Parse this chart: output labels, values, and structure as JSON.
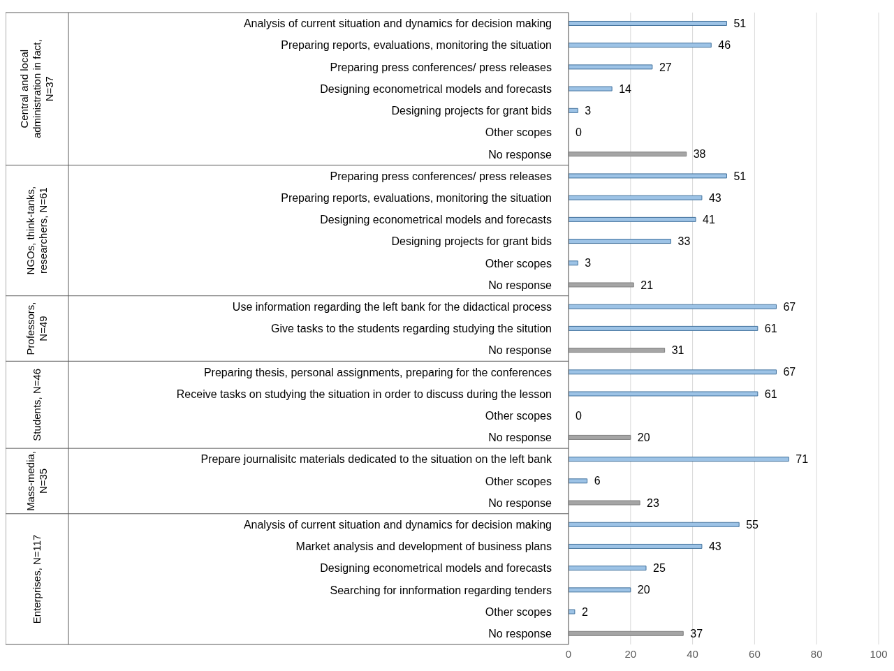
{
  "chart_data": {
    "type": "bar",
    "orientation": "horizontal",
    "categories": [
      "Analysis of current situation and dynamics for decision making",
      "Preparing reports, evaluations, monitoring the situation",
      "Preparing press conferences/ press releases",
      "Designing econometrical models and forecasts",
      "Designing projects for grant bids",
      "Other scopes",
      "No response",
      "Preparing press conferences/ press releases",
      "Preparing reports, evaluations, monitoring the situation",
      "Designing econometrical models and forecasts",
      "Designing projects for grant bids",
      "Other scopes",
      "No response",
      "Use information regarding the left bank for the didactical process",
      "Give tasks to the students regarding studying the sitution",
      "No response",
      "Preparing thesis, personal assignments, preparing for the conferences",
      "Receive tasks on studying the situation in order to discuss during the lesson",
      "Other scopes",
      "No response",
      "Prepare journalisitc materials dedicated to the situation on the left bank",
      "Other scopes",
      "No response",
      "Analysis of current situation and dynamics for decision making",
      "Market analysis and development of business plans",
      "Designing econometrical models and forecasts",
      "Searching for innformation regarding tenders",
      "Other scopes",
      "No response"
    ],
    "values": [
      51,
      46,
      27,
      14,
      3,
      0,
      38,
      51,
      43,
      41,
      33,
      3,
      21,
      67,
      61,
      31,
      67,
      61,
      0,
      20,
      71,
      6,
      23,
      55,
      43,
      25,
      20,
      2,
      37
    ],
    "colors": [
      "#9dc3e6",
      "#9dc3e6",
      "#9dc3e6",
      "#9dc3e6",
      "#9dc3e6",
      "#9dc3e6",
      "#a5a5a5",
      "#9dc3e6",
      "#9dc3e6",
      "#9dc3e6",
      "#9dc3e6",
      "#9dc3e6",
      "#a5a5a5",
      "#9dc3e6",
      "#9dc3e6",
      "#a5a5a5",
      "#9dc3e6",
      "#9dc3e6",
      "#9dc3e6",
      "#a5a5a5",
      "#9dc3e6",
      "#9dc3e6",
      "#a5a5a5",
      "#9dc3e6",
      "#9dc3e6",
      "#9dc3e6",
      "#9dc3e6",
      "#9dc3e6",
      "#a5a5a5"
    ],
    "xlim": [
      0,
      100
    ],
    "xticks": [
      0,
      20,
      40,
      60,
      80,
      100
    ],
    "grid": "x",
    "data_labels": true,
    "annotations": [
      "Central and local administration in fact, N=37",
      "NGOs, think-tanks, researchers, N=61",
      "Professors, N=49",
      "Students, N=46",
      "Mass-media, N=35",
      "Enterprises, N=117"
    ]
  }
}
